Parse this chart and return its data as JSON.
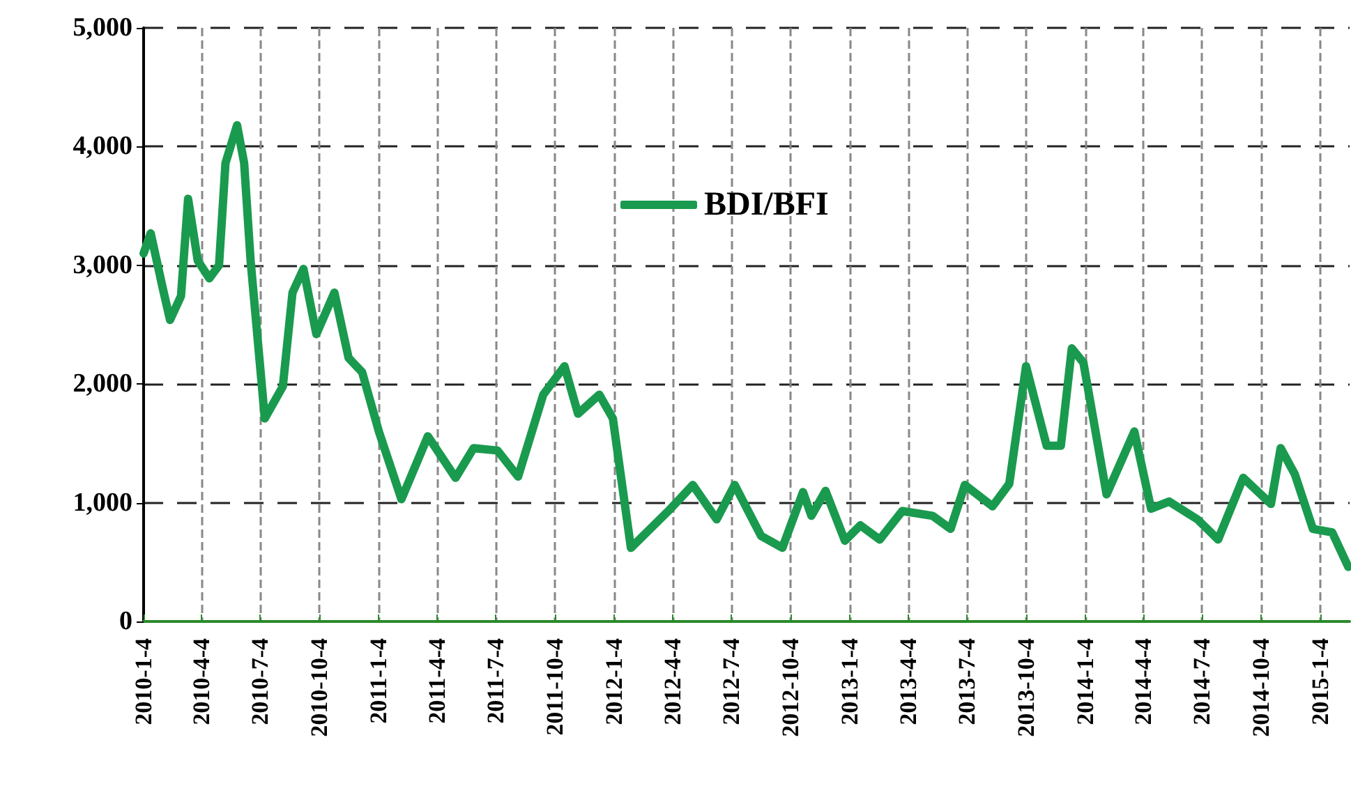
{
  "chart_data": {
    "type": "line",
    "legend": "top",
    "grid": true,
    "marker": "none",
    "line_style": "solid",
    "xlim": [
      "2010-01-04",
      "2015-02-18"
    ],
    "ylim": [
      0,
      5000
    ],
    "yticks": [
      {
        "value": 0,
        "label": "0"
      },
      {
        "value": 1000,
        "label": "1,000"
      },
      {
        "value": 2000,
        "label": "2,000"
      },
      {
        "value": 3000,
        "label": "3,000"
      },
      {
        "value": 4000,
        "label": "4,000"
      },
      {
        "value": 5000,
        "label": "5,000"
      }
    ],
    "xticks": [
      {
        "value": "2010-01-04",
        "label": "2010-1-4"
      },
      {
        "value": "2010-04-04",
        "label": "2010-4-4"
      },
      {
        "value": "2010-07-04",
        "label": "2010-7-4"
      },
      {
        "value": "2010-10-04",
        "label": "2010-10-4"
      },
      {
        "value": "2011-01-04",
        "label": "2011-1-4"
      },
      {
        "value": "2011-04-04",
        "label": "2011-4-4"
      },
      {
        "value": "2011-07-04",
        "label": "2011-7-4"
      },
      {
        "value": "2011-10-04",
        "label": "2011-10-4"
      },
      {
        "value": "2012-01-04",
        "label": "2012-1-4"
      },
      {
        "value": "2012-04-04",
        "label": "2012-4-4"
      },
      {
        "value": "2012-07-04",
        "label": "2012-7-4"
      },
      {
        "value": "2012-10-04",
        "label": "2012-10-4"
      },
      {
        "value": "2013-01-04",
        "label": "2013-1-4"
      },
      {
        "value": "2013-04-04",
        "label": "2013-4-4"
      },
      {
        "value": "2013-07-04",
        "label": "2013-7-4"
      },
      {
        "value": "2013-10-04",
        "label": "2013-10-4"
      },
      {
        "value": "2014-01-04",
        "label": "2014-1-4"
      },
      {
        "value": "2014-04-04",
        "label": "2014-4-4"
      },
      {
        "value": "2014-07-04",
        "label": "2014-7-4"
      },
      {
        "value": "2014-10-04",
        "label": "2014-10-4"
      },
      {
        "value": "2015-01-04",
        "label": "2015-1-4"
      }
    ],
    "series": [
      {
        "name": "BDI/BFI",
        "color": "#1a9a4e",
        "x": [
          "2010-01-04",
          "2010-01-15",
          "2010-02-03",
          "2010-02-14",
          "2010-03-03",
          "2010-03-14",
          "2010-03-29",
          "2010-04-16",
          "2010-05-01",
          "2010-05-11",
          "2010-05-29",
          "2010-06-09",
          "2010-06-19",
          "2010-07-11",
          "2010-08-08",
          "2010-08-23",
          "2010-09-09",
          "2010-09-29",
          "2010-10-27",
          "2010-11-18",
          "2010-12-09",
          "2011-01-04",
          "2011-02-08",
          "2011-03-21",
          "2011-05-03",
          "2011-05-31",
          "2011-07-07",
          "2011-08-08",
          "2011-09-16",
          "2011-10-19",
          "2011-11-09",
          "2011-12-12",
          "2012-01-02",
          "2012-01-30",
          "2012-03-28",
          "2012-05-05",
          "2012-06-11",
          "2012-07-09",
          "2012-08-19",
          "2012-09-21",
          "2012-10-23",
          "2012-11-05",
          "2012-11-27",
          "2012-12-27",
          "2013-01-20",
          "2013-02-19",
          "2013-03-26",
          "2013-05-12",
          "2013-06-09",
          "2013-07-01",
          "2013-08-13",
          "2013-09-08",
          "2013-10-04",
          "2013-11-05",
          "2013-11-27",
          "2013-12-14",
          "2014-01-01",
          "2014-02-06",
          "2014-03-21",
          "2014-04-16",
          "2014-05-14",
          "2014-06-27",
          "2014-07-29",
          "2014-09-06",
          "2014-10-19",
          "2014-11-03",
          "2014-11-25",
          "2014-12-23",
          "2015-01-22",
          "2015-02-16"
        ],
        "values": [
          3100,
          3270,
          2800,
          2540,
          2740,
          3560,
          3040,
          2890,
          3000,
          3860,
          4180,
          3860,
          3040,
          1710,
          1980,
          2770,
          2970,
          2420,
          2770,
          2220,
          2100,
          1600,
          1030,
          1560,
          1210,
          1460,
          1440,
          1220,
          1910,
          2150,
          1750,
          1910,
          1710,
          620,
          930,
          1150,
          860,
          1150,
          720,
          620,
          1090,
          890,
          1100,
          680,
          810,
          690,
          930,
          890,
          780,
          1150,
          970,
          1160,
          2150,
          1480,
          1480,
          2300,
          2180,
          1070,
          1600,
          950,
          1010,
          860,
          690,
          1210,
          990,
          1460,
          1240,
          780,
          750,
          460
        ]
      }
    ]
  }
}
